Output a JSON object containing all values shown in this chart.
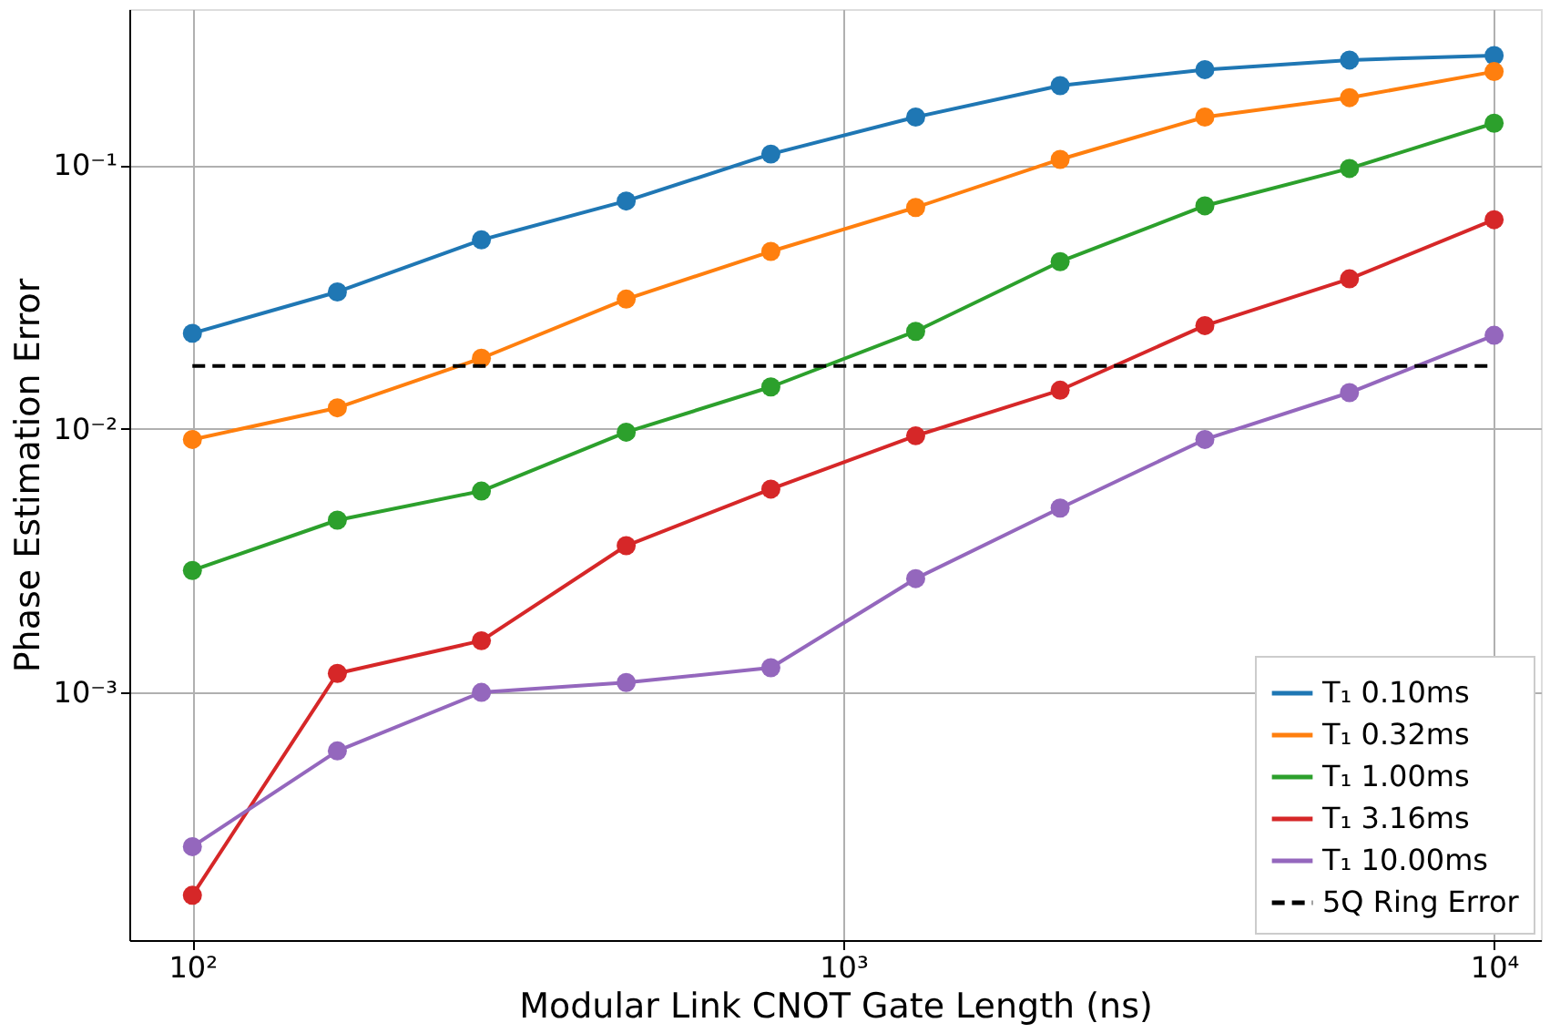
{
  "chart_data": {
    "type": "line",
    "xlabel": "Modular Link CNOT Gate Length (ns)",
    "ylabel": "Phase Estimation Error",
    "x": [
      100,
      167,
      278,
      464,
      774,
      1292,
      2154,
      3594,
      5995,
      10000
    ],
    "series": [
      {
        "name": "T₁ 0.10ms",
        "color": "#1f77b4",
        "values": [
          0.023,
          0.033,
          0.052,
          0.073,
          0.11,
          0.152,
          0.2,
          0.23,
          0.25,
          0.26
        ]
      },
      {
        "name": "T₁ 0.32ms",
        "color": "#ff7f0e",
        "values": [
          0.0091,
          0.012,
          0.0185,
          0.031,
          0.047,
          0.069,
          0.105,
          0.152,
          0.18,
          0.226
        ]
      },
      {
        "name": "T₁ 1.00ms",
        "color": "#2ca02c",
        "values": [
          0.0029,
          0.0045,
          0.0058,
          0.0097,
          0.0144,
          0.0234,
          0.043,
          0.07,
          0.097,
          0.144
        ]
      },
      {
        "name": "T₁ 3.16ms",
        "color": "#d62728",
        "values": [
          0.00017,
          0.00118,
          0.00157,
          0.0036,
          0.0059,
          0.0094,
          0.014,
          0.0246,
          0.037,
          0.062
        ]
      },
      {
        "name": "T₁ 10.00ms",
        "color": "#9467bd",
        "values": [
          0.00026,
          0.0006,
          0.001,
          0.00109,
          0.00124,
          0.0027,
          0.005,
          0.0091,
          0.0137,
          0.0226
        ]
      }
    ],
    "ref_lines": [
      {
        "axis": "y",
        "value": 0.0173,
        "label": "5Q Ring Error",
        "color": "#000000",
        "line_style": "dashed"
      }
    ],
    "xlim": [
      80,
      11800
    ],
    "ylim": [
      0.000115,
      0.39
    ],
    "xticks": [
      {
        "value": 100,
        "label": "10²"
      },
      {
        "value": 1000,
        "label": "10³"
      },
      {
        "value": 10000,
        "label": "10⁴"
      }
    ],
    "yticks": [
      {
        "value": 0.001,
        "label": "10⁻³"
      },
      {
        "value": 0.01,
        "label": "10⁻²"
      },
      {
        "value": 0.1,
        "label": "10⁻¹"
      }
    ],
    "log": "xy",
    "grid": true,
    "legend": "bottom right",
    "marker": "circle",
    "line_style": "solid"
  }
}
